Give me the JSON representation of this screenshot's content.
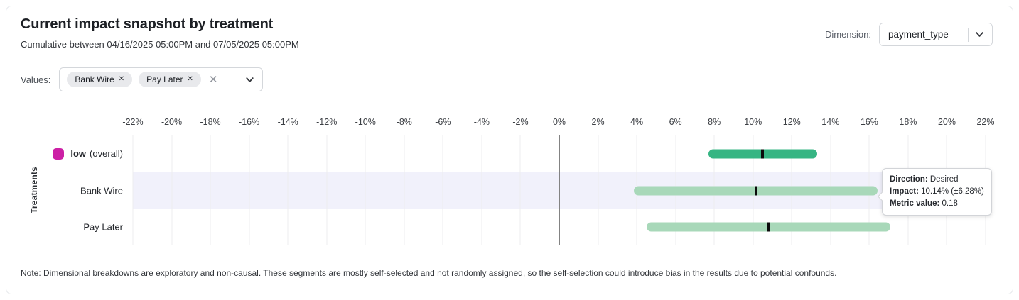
{
  "header": {
    "title": "Current impact snapshot by treatment",
    "subtitle": "Cumulative between 04/16/2025 05:00PM and 07/05/2025 05:00PM"
  },
  "dimension": {
    "label": "Dimension:",
    "selected": "payment_type"
  },
  "values_filter": {
    "label": "Values:",
    "chips": [
      {
        "label": "Bank Wire",
        "remove_icon": "✕"
      },
      {
        "label": "Pay Later",
        "remove_icon": "✕"
      }
    ],
    "clear_icon": "✕"
  },
  "chart_data": {
    "type": "interval_bar",
    "title": "Current impact snapshot by treatment",
    "ylabel": "Treatments",
    "x_unit": "%",
    "xlim": [
      -22,
      22
    ],
    "grid": true,
    "x_tick_labels": [
      "-22%",
      "-20%",
      "-18%",
      "-16%",
      "-14%",
      "-12%",
      "-10%",
      "-8%",
      "-6%",
      "-4%",
      "-2%",
      "0%",
      "2%",
      "4%",
      "6%",
      "8%",
      "10%",
      "12%",
      "14%",
      "16%",
      "18%",
      "20%",
      "22%"
    ],
    "marker_color": "#0b0b0b",
    "rows": [
      {
        "label": "low",
        "label_suffix": "(overall)",
        "swatch_color": "#cc20a5",
        "bar_color": "#36b583",
        "low": 7.7,
        "high": 13.3,
        "center": 10.5,
        "highlighted": false
      },
      {
        "label": "Bank Wire",
        "bar_color": "#a8d8b9",
        "low": 3.86,
        "high": 16.42,
        "center": 10.14,
        "highlighted": true
      },
      {
        "label": "Pay Later",
        "bar_color": "#a8d8b9",
        "low": 4.5,
        "high": 17.1,
        "center": 10.8,
        "highlighted": false
      }
    ]
  },
  "tooltip": {
    "lines": [
      {
        "label": "Direction:",
        "value": "Desired"
      },
      {
        "label": "Impact:",
        "value": "10.14% (±6.28%)"
      },
      {
        "label": "Metric value:",
        "value": "0.18"
      }
    ]
  },
  "note": "Note: Dimensional breakdowns are exploratory and non-causal. These segments are mostly self-selected and not randomly assigned, so the self-selection could introduce bias in the results due to potential confounds."
}
